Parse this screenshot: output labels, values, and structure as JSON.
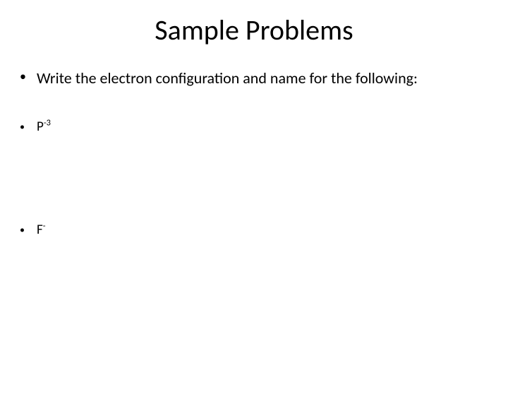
{
  "slide": {
    "title": "Sample Problems",
    "title_fontsize": 40,
    "title_color": "#000000",
    "background_color": "#ffffff",
    "bullets": [
      {
        "text": "Write the electron configuration and name for the following:",
        "fontsize": 22,
        "type": "main"
      },
      {
        "base": "P",
        "superscript": "-3",
        "fontsize": 19,
        "type": "ion"
      },
      {
        "base": "F",
        "superscript": "-",
        "fontsize": 19,
        "type": "ion"
      }
    ],
    "bullet_marker": "•",
    "text_color": "#000000",
    "font_family": "Calibri"
  }
}
